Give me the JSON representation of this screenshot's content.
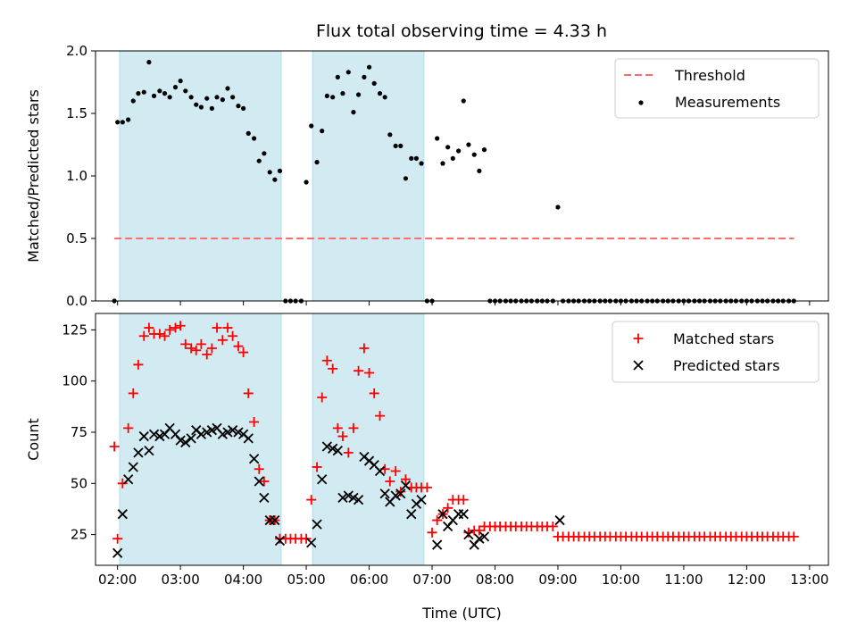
{
  "title": "Flux total observing time = 4.33 h",
  "colors": {
    "threshold": "#ff6b6b",
    "measurements": "#000000",
    "matched": "#ff0000",
    "predicted": "#000000",
    "span": "#add8e6"
  },
  "chart_data": [
    {
      "type": "scatter",
      "ylabel": "Matched/Predicted stars",
      "xlim": [
        1.65,
        13.3
      ],
      "ylim": [
        0,
        2.0
      ],
      "yticks": [
        "0.0",
        "0.5",
        "1.0",
        "1.5",
        "2.0"
      ],
      "yticks_values": [
        0,
        0.5,
        1.0,
        1.5,
        2.0
      ],
      "shaded_spans": [
        [
          2.033,
          4.6
        ],
        [
          5.1,
          6.87
        ]
      ],
      "legend": {
        "position": "top-right",
        "entries": [
          "Threshold",
          "Measurements"
        ]
      },
      "series": [
        {
          "name": "Threshold",
          "style": "dashed-line",
          "x": [
            1.95,
            12.75
          ],
          "y": [
            0.5,
            0.5
          ]
        },
        {
          "name": "Measurements",
          "style": "dots",
          "x": [
            1.95,
            2.0,
            2.08,
            2.17,
            2.25,
            2.33,
            2.42,
            2.5,
            2.58,
            2.67,
            2.75,
            2.83,
            2.92,
            3.0,
            3.08,
            3.17,
            3.25,
            3.33,
            3.42,
            3.5,
            3.58,
            3.67,
            3.75,
            3.83,
            3.92,
            4.0,
            4.08,
            4.17,
            4.25,
            4.33,
            4.42,
            4.5,
            4.58,
            4.67,
            4.75,
            4.83,
            4.92,
            5.0,
            5.08,
            5.17,
            5.25,
            5.33,
            5.42,
            5.5,
            5.58,
            5.67,
            5.75,
            5.83,
            5.92,
            6.0,
            6.08,
            6.17,
            6.25,
            6.33,
            6.42,
            6.5,
            6.58,
            6.67,
            6.75,
            6.83,
            6.92,
            7.0,
            7.08,
            7.17,
            7.25,
            7.33,
            7.42,
            7.5,
            7.58,
            7.67,
            7.75,
            7.83,
            7.92,
            8.0,
            8.08,
            8.17,
            8.25,
            8.33,
            8.42,
            8.5,
            8.58,
            8.67,
            8.75,
            8.83,
            8.92,
            9.0,
            9.08,
            9.17,
            9.25,
            9.33,
            9.42,
            9.5,
            9.58,
            9.67,
            9.75,
            9.83,
            9.92,
            10.0,
            10.08,
            10.17,
            10.25,
            10.33,
            10.42,
            10.5,
            10.58,
            10.67,
            10.75,
            10.83,
            10.92,
            11.0,
            11.08,
            11.17,
            11.25,
            11.33,
            11.42,
            11.5,
            11.58,
            11.67,
            11.75,
            11.83,
            11.92,
            12.0,
            12.08,
            12.17,
            12.25,
            12.33,
            12.42,
            12.5,
            12.58,
            12.67,
            12.75
          ],
          "y": [
            0.0,
            1.43,
            1.43,
            1.45,
            1.6,
            1.66,
            1.67,
            1.91,
            1.64,
            1.68,
            1.66,
            1.63,
            1.71,
            1.76,
            1.68,
            1.63,
            1.57,
            1.55,
            1.62,
            1.54,
            1.63,
            1.61,
            1.7,
            1.63,
            1.56,
            1.54,
            1.34,
            1.3,
            1.12,
            1.18,
            1.03,
            0.97,
            1.04,
            0.0,
            0.0,
            0.0,
            0.0,
            0.95,
            1.4,
            1.11,
            1.36,
            1.64,
            1.63,
            1.79,
            1.66,
            1.83,
            1.51,
            1.65,
            1.79,
            1.87,
            1.74,
            1.66,
            1.63,
            1.33,
            1.24,
            1.24,
            0.98,
            1.14,
            1.14,
            1.1,
            0.0,
            0.0,
            1.3,
            1.1,
            1.23,
            1.14,
            1.2,
            1.6,
            1.25,
            1.17,
            1.04,
            1.21,
            0.0,
            0.0,
            0.0,
            0.0,
            0.0,
            0.0,
            0.0,
            0.0,
            0.0,
            0.0,
            0.0,
            0.0,
            0.0,
            0.75,
            0.0,
            0.0,
            0.0,
            0.0,
            0.0,
            0.0,
            0.0,
            0.0,
            0.0,
            0.0,
            0.0,
            0.0,
            0.0,
            0.0,
            0.0,
            0.0,
            0.0,
            0.0,
            0.0,
            0.0,
            0.0,
            0.0,
            0.0,
            0.0,
            0.0,
            0.0,
            0.0,
            0.0,
            0.0,
            0.0,
            0.0,
            0.0,
            0.0,
            0.0,
            0.0,
            0.0,
            0.0,
            0.0,
            0.0,
            0.0,
            0.0,
            0.0,
            0.0,
            0.0,
            0.0
          ]
        }
      ]
    },
    {
      "type": "scatter",
      "xlabel": "Time (UTC)",
      "ylabel": "Count",
      "xlim": [
        1.65,
        13.3
      ],
      "ylim": [
        10,
        133
      ],
      "xticks": [
        "02:00",
        "03:00",
        "04:00",
        "05:00",
        "06:00",
        "07:00",
        "08:00",
        "09:00",
        "10:00",
        "11:00",
        "12:00",
        "13:00"
      ],
      "xticks_values": [
        2,
        3,
        4,
        5,
        6,
        7,
        8,
        9,
        10,
        11,
        12,
        13
      ],
      "yticks": [
        "25",
        "50",
        "75",
        "100",
        "125"
      ],
      "yticks_values": [
        25,
        50,
        75,
        100,
        125
      ],
      "shaded_spans": [
        [
          2.033,
          4.6
        ],
        [
          5.1,
          6.87
        ]
      ],
      "legend": {
        "position": "top-right",
        "entries": [
          "Matched stars",
          "Predicted stars"
        ]
      },
      "series": [
        {
          "name": "Matched stars",
          "style": "plus",
          "x": [
            1.95,
            2.0,
            2.08,
            2.17,
            2.25,
            2.33,
            2.42,
            2.5,
            2.58,
            2.67,
            2.75,
            2.83,
            2.92,
            3.0,
            3.08,
            3.17,
            3.25,
            3.33,
            3.42,
            3.5,
            3.58,
            3.67,
            3.75,
            3.83,
            3.92,
            4.0,
            4.08,
            4.17,
            4.25,
            4.33,
            4.42,
            4.5,
            4.58,
            4.67,
            4.75,
            4.83,
            4.92,
            5.0,
            5.08,
            5.17,
            5.25,
            5.33,
            5.42,
            5.5,
            5.58,
            5.67,
            5.75,
            5.83,
            5.92,
            6.0,
            6.08,
            6.17,
            6.25,
            6.33,
            6.42,
            6.5,
            6.58,
            6.67,
            6.75,
            6.83,
            6.92,
            7.0,
            7.08,
            7.17,
            7.25,
            7.33,
            7.42,
            7.5,
            7.58,
            7.67,
            7.75,
            7.83,
            7.92,
            8.0,
            8.08,
            8.17,
            8.25,
            8.33,
            8.42,
            8.5,
            8.58,
            8.67,
            8.75,
            8.83,
            8.92,
            9.0,
            9.08,
            9.17,
            9.25,
            9.33,
            9.42,
            9.5,
            9.58,
            9.67,
            9.75,
            9.83,
            9.92,
            10.0,
            10.08,
            10.17,
            10.25,
            10.33,
            10.42,
            10.5,
            10.58,
            10.67,
            10.75,
            10.83,
            10.92,
            11.0,
            11.08,
            11.17,
            11.25,
            11.33,
            11.42,
            11.5,
            11.58,
            11.67,
            11.75,
            11.83,
            11.92,
            12.0,
            12.08,
            12.17,
            12.25,
            12.33,
            12.42,
            12.5,
            12.58,
            12.67,
            12.75
          ],
          "y": [
            68,
            23,
            50,
            77,
            94,
            108,
            122,
            126,
            123,
            123,
            122,
            125,
            126,
            127,
            118,
            116,
            115,
            118,
            113,
            116,
            126,
            120,
            126,
            122,
            117,
            114,
            94,
            80,
            57,
            51,
            32,
            32,
            23,
            23,
            23,
            23,
            23,
            23,
            42,
            58,
            92,
            110,
            106,
            77,
            73,
            65,
            77,
            105,
            116,
            104,
            94,
            83,
            57,
            51,
            56,
            46,
            52,
            48,
            48,
            48,
            48,
            26,
            32,
            35,
            38,
            42,
            42,
            42,
            26,
            27,
            27,
            29,
            29,
            29,
            29,
            29,
            29,
            29,
            29,
            29,
            29,
            29,
            29,
            29,
            29,
            24,
            24,
            24,
            24,
            24,
            24,
            24,
            24,
            24,
            24,
            24,
            24,
            24,
            24,
            24,
            24,
            24,
            24,
            24,
            24,
            24,
            24,
            24,
            24,
            24,
            24,
            24,
            24,
            24,
            24,
            24,
            24,
            24,
            24,
            24,
            24,
            24,
            24,
            24,
            24,
            24,
            24,
            24,
            24,
            24,
            24
          ]
        },
        {
          "name": "Predicted stars",
          "style": "x",
          "x": [
            2.0,
            2.08,
            2.17,
            2.25,
            2.33,
            2.42,
            2.5,
            2.58,
            2.67,
            2.75,
            2.83,
            2.92,
            3.0,
            3.08,
            3.17,
            3.25,
            3.33,
            3.42,
            3.5,
            3.58,
            3.67,
            3.75,
            3.83,
            3.92,
            4.0,
            4.08,
            4.17,
            4.25,
            4.33,
            4.42,
            4.5,
            4.58,
            5.08,
            5.17,
            5.25,
            5.33,
            5.42,
            5.5,
            5.58,
            5.67,
            5.75,
            5.83,
            5.92,
            6.0,
            6.08,
            6.17,
            6.25,
            6.33,
            6.42,
            6.5,
            6.58,
            6.67,
            6.75,
            6.83,
            7.08,
            7.17,
            7.25,
            7.33,
            7.42,
            7.5,
            7.58,
            7.67,
            7.75,
            7.83,
            9.03
          ],
          "y": [
            16,
            35,
            52,
            58,
            65,
            73,
            66,
            74,
            73,
            74,
            77,
            74,
            71,
            70,
            72,
            76,
            74,
            75,
            76,
            77,
            74,
            75,
            76,
            75,
            74,
            72,
            62,
            51,
            43,
            32,
            32,
            22,
            21,
            30,
            52,
            68,
            67,
            66,
            43,
            44,
            43,
            42,
            63,
            61,
            59,
            56,
            45,
            41,
            44,
            45,
            49,
            35,
            40,
            42,
            20,
            35,
            29,
            32,
            35,
            35,
            25,
            20,
            23,
            24,
            32
          ]
        }
      ]
    }
  ]
}
